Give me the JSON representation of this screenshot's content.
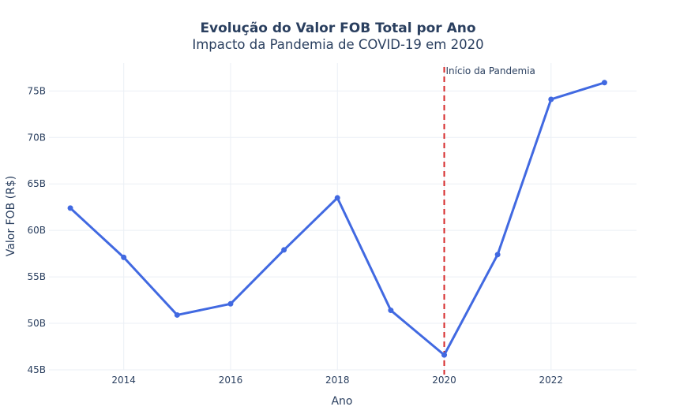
{
  "chart_data": {
    "type": "line",
    "title": "Evolução do Valor FOB Total por Ano",
    "subtitle": "Impacto da Pandemia de COVID-19 em 2020",
    "xlabel": "Ano",
    "ylabel": "Valor FOB (R$)",
    "x": [
      2013,
      2014,
      2015,
      2016,
      2017,
      2018,
      2019,
      2020,
      2021,
      2022,
      2023
    ],
    "values": [
      62.4,
      57.1,
      50.9,
      52.1,
      57.9,
      63.5,
      51.4,
      46.6,
      57.4,
      74.1,
      75.9
    ],
    "xlim": [
      2012.6,
      2023.6
    ],
    "ylim": [
      45,
      78
    ],
    "xticks": [
      2014,
      2016,
      2018,
      2020,
      2022
    ],
    "yticks": [
      45,
      50,
      55,
      60,
      65,
      70,
      75
    ],
    "ytick_labels": [
      "45B",
      "50B",
      "55B",
      "60B",
      "65B",
      "70B",
      "75B"
    ],
    "grid": true,
    "line_color": "#4169e1",
    "annotation": {
      "x": 2020,
      "text": "Início da Pandemia",
      "line_color": "#d62728",
      "line_style": "dashed"
    }
  }
}
